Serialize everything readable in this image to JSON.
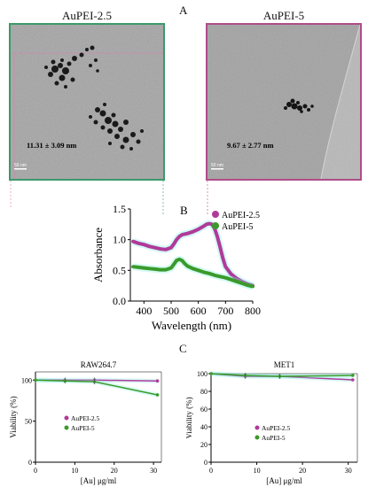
{
  "panel_labels": {
    "a": "A",
    "b": "B",
    "c": "C"
  },
  "tem": {
    "left": {
      "title": "AuPEI-2.5",
      "size": "11.31 ± 3.09 nm",
      "scale": "50 nm"
    },
    "right": {
      "title": "AuPEI-5",
      "size": "9.67 ± 2.77 nm",
      "scale": "50 nm"
    }
  },
  "colors": {
    "aupei25": "#b03a9a",
    "aupei5": "#3a9a2a",
    "glow": "#80f0e0"
  },
  "chart_data": [
    {
      "type": "line",
      "xlabel": "Wavelength (nm)",
      "ylabel": "Absorbance",
      "xlim": [
        350,
        800
      ],
      "ylim": [
        0,
        1.5
      ],
      "xticks": [
        "400",
        "500",
        "600",
        "700",
        "800"
      ],
      "yticks": [
        "0.0",
        "0.5",
        "1.0",
        "1.5"
      ],
      "legend": "top-right",
      "series": [
        {
          "name": "AuPEI-2.5",
          "x": [
            360,
            380,
            400,
            420,
            440,
            460,
            480,
            500,
            510,
            520,
            530,
            540,
            560,
            580,
            600,
            620,
            630,
            640,
            650,
            660,
            670,
            680,
            690,
            700,
            720,
            740,
            760,
            780,
            800
          ],
          "y": [
            0.97,
            0.94,
            0.92,
            0.89,
            0.87,
            0.85,
            0.84,
            0.87,
            0.93,
            1.0,
            1.05,
            1.08,
            1.1,
            1.13,
            1.17,
            1.22,
            1.25,
            1.26,
            1.25,
            1.18,
            1.05,
            0.88,
            0.7,
            0.56,
            0.44,
            0.37,
            0.32,
            0.28,
            0.25
          ]
        },
        {
          "name": "AuPEI-5",
          "x": [
            360,
            380,
            400,
            420,
            440,
            460,
            480,
            500,
            510,
            520,
            530,
            540,
            550,
            560,
            580,
            600,
            620,
            640,
            660,
            680,
            700,
            720,
            740,
            760,
            780,
            800
          ],
          "y": [
            0.56,
            0.55,
            0.54,
            0.53,
            0.52,
            0.51,
            0.51,
            0.54,
            0.6,
            0.66,
            0.68,
            0.66,
            0.61,
            0.57,
            0.53,
            0.5,
            0.47,
            0.45,
            0.42,
            0.4,
            0.38,
            0.35,
            0.32,
            0.29,
            0.26,
            0.24
          ]
        }
      ]
    },
    {
      "type": "line",
      "title": "RAW264.7",
      "xlabel": "[Au] μg/ml",
      "ylabel": "Viability (%)",
      "xlim": [
        0,
        32
      ],
      "ylim": [
        0,
        110
      ],
      "xticks": [
        "0",
        "10",
        "20",
        "30"
      ],
      "yticks": [
        "0",
        "50",
        "100"
      ],
      "legend": "middle-left",
      "series": [
        {
          "name": "AuPEI-2.5",
          "x": [
            0,
            7.5,
            15,
            31
          ],
          "y": [
            100,
            100,
            100,
            99
          ]
        },
        {
          "name": "AuPEI-5",
          "x": [
            0,
            7.5,
            15,
            31
          ],
          "y": [
            100,
            99,
            98,
            82
          ]
        }
      ]
    },
    {
      "type": "line",
      "title": "MET1",
      "xlabel": "[Au] μg/ml",
      "ylabel": "Viability (%)",
      "xlim": [
        0,
        32
      ],
      "ylim": [
        0,
        100
      ],
      "xticks": [
        "0",
        "10",
        "20",
        "30"
      ],
      "yticks": [
        "0",
        "20",
        "40",
        "60",
        "80",
        "100"
      ],
      "legend": "middle-right",
      "series": [
        {
          "name": "AuPEI-2.5",
          "x": [
            0,
            7.5,
            15,
            31
          ],
          "y": [
            100,
            97,
            97,
            93
          ]
        },
        {
          "name": "AuPEI-5",
          "x": [
            0,
            7.5,
            15,
            31
          ],
          "y": [
            100,
            98,
            97,
            98
          ]
        }
      ]
    }
  ]
}
